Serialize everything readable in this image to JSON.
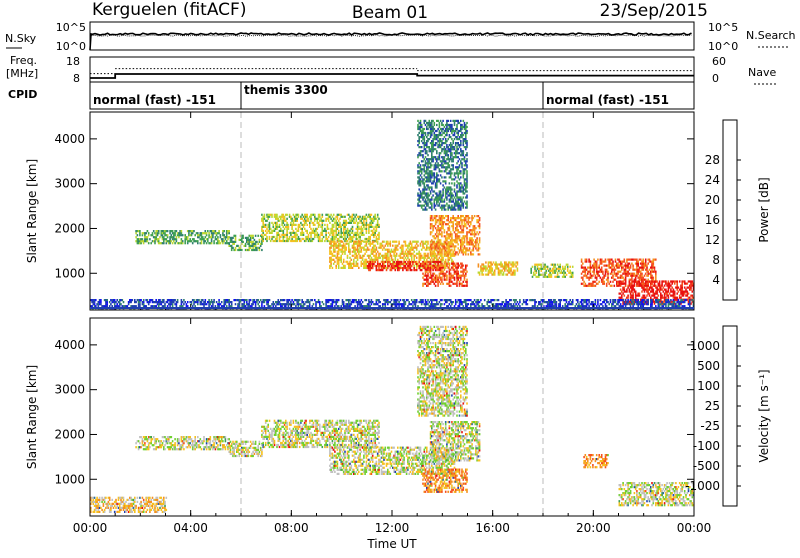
{
  "header": {
    "station": "Kerguelen (fitACF)",
    "beam": "Beam 01",
    "date": "23/Sep/2015"
  },
  "top_panel": {
    "left_label_top": "N.Sky",
    "left_label_bottom": "Freq.",
    "left_label_units": "[MHz]",
    "cpid_label": "CPID",
    "right_label_top": "N.Search",
    "right_label_bottom": "Nave",
    "nsky_ticks": [
      "10^5",
      "10^0"
    ],
    "freq_ticks": [
      "18",
      "8"
    ],
    "nsearch_ticks": [
      "10^5",
      "10^0"
    ],
    "nave_ticks": [
      "60",
      "0"
    ],
    "cpid_segments": [
      {
        "label": "normal (fast) -151",
        "start_hour": 0
      },
      {
        "label": "themis 3300",
        "start_hour": 6
      },
      {
        "label": "normal (fast) -151",
        "start_hour": 18
      }
    ],
    "freq_steps": [
      {
        "from_hour": 0,
        "to_hour": 1,
        "mhz": 9
      },
      {
        "from_hour": 1,
        "to_hour": 13,
        "mhz": 11
      },
      {
        "from_hour": 13,
        "to_hour": 24,
        "mhz": 10.2
      }
    ],
    "nave_level": 25
  },
  "chart_data": [
    {
      "type": "heatmap",
      "name": "Power",
      "ylabel": "Slant Range [km]",
      "xlabel": "",
      "x_ticks": [
        "00:00",
        "04:00",
        "08:00",
        "12:00",
        "16:00",
        "20:00",
        "00:00"
      ],
      "x_hours": [
        0,
        4,
        8,
        12,
        16,
        20,
        24
      ],
      "y_ticks": [
        1000,
        2000,
        3000,
        4000
      ],
      "ylim": [
        180,
        4600
      ],
      "colorbar": {
        "label": "Power [dB]",
        "ticks": [
          "4",
          "8",
          "12",
          "16",
          "20",
          "24",
          "28"
        ],
        "colors": [
          "#1010f0",
          "#1f3fb0",
          "#2f7f6f",
          "#3fa050",
          "#bcd830",
          "#f5c020",
          "#f59020",
          "#f55020",
          "#e81010"
        ]
      },
      "blobs": [
        {
          "t0": 1.8,
          "t1": 5.5,
          "r0": 1650,
          "r1": 1950,
          "level": 3
        },
        {
          "t0": 5.5,
          "t1": 6.8,
          "r0": 1500,
          "r1": 1850,
          "level": 3
        },
        {
          "t0": 6.8,
          "t1": 11.5,
          "r0": 1700,
          "r1": 2300,
          "level": 4
        },
        {
          "t0": 9.5,
          "t1": 14.5,
          "r0": 1100,
          "r1": 1700,
          "level": 5
        },
        {
          "t0": 11,
          "t1": 14,
          "r0": 1050,
          "r1": 1250,
          "level": 8
        },
        {
          "t0": 13.5,
          "t1": 15.5,
          "r0": 1400,
          "r1": 2300,
          "level": 6
        },
        {
          "t0": 13.2,
          "t1": 15,
          "r0": 700,
          "r1": 1200,
          "level": 7
        },
        {
          "t0": 15.4,
          "t1": 17.0,
          "r0": 950,
          "r1": 1250,
          "level": 5
        },
        {
          "t0": 17.5,
          "t1": 19.2,
          "r0": 900,
          "r1": 1200,
          "level": 4
        },
        {
          "t0": 19.5,
          "t1": 22.5,
          "r0": 700,
          "r1": 1300,
          "level": 7
        },
        {
          "t0": 21,
          "t1": 24,
          "r0": 300,
          "r1": 800,
          "level": 8
        },
        {
          "t0": 13,
          "t1": 15,
          "r0": 2400,
          "r1": 4400,
          "level": 2
        },
        {
          "t0": 0,
          "t1": 24,
          "r0": 200,
          "r1": 400,
          "level": 1
        }
      ]
    },
    {
      "type": "heatmap",
      "name": "Velocity",
      "ylabel": "Slant Range [km]",
      "xlabel": "Time UT",
      "x_ticks": [
        "00:00",
        "04:00",
        "08:00",
        "12:00",
        "16:00",
        "20:00",
        "00:00"
      ],
      "x_hours": [
        0,
        4,
        8,
        12,
        16,
        20,
        24
      ],
      "y_ticks": [
        1000,
        2000,
        3000,
        4000
      ],
      "ylim": [
        180,
        4600
      ],
      "colorbar": {
        "label": "Velocity [m s⁻¹]",
        "ticks": [
          "1000",
          "500",
          "100",
          "25",
          "-25",
          "-100",
          "-500",
          "-1000"
        ],
        "colors": [
          "#1f3fb0",
          "#2f6f9f",
          "#3f9f50",
          "#70d030",
          "#c0c0c0",
          "#f5c020",
          "#f59020",
          "#f55020",
          "#e81010"
        ]
      },
      "blobs": [
        {
          "t0": 1.8,
          "t1": 5.5,
          "r0": 1650,
          "r1": 1950,
          "level": 4
        },
        {
          "t0": 5.5,
          "t1": 6.8,
          "r0": 1500,
          "r1": 1850,
          "level": 4
        },
        {
          "t0": 6.8,
          "t1": 11.5,
          "r0": 1700,
          "r1": 2300,
          "level": 4
        },
        {
          "t0": 9.5,
          "t1": 14.5,
          "r0": 1100,
          "r1": 1700,
          "level": 4
        },
        {
          "t0": 13.5,
          "t1": 15.5,
          "r0": 1400,
          "r1": 2300,
          "level": 4
        },
        {
          "t0": 13.2,
          "t1": 15,
          "r0": 700,
          "r1": 1200,
          "level": 6
        },
        {
          "t0": 19.6,
          "t1": 20.6,
          "r0": 1250,
          "r1": 1550,
          "level": 6
        },
        {
          "t0": 21,
          "t1": 24,
          "r0": 400,
          "r1": 900,
          "level": 4
        },
        {
          "t0": 13,
          "t1": 15,
          "r0": 2400,
          "r1": 4400,
          "level": 4
        },
        {
          "t0": 0,
          "t1": 3,
          "r0": 250,
          "r1": 600,
          "level": 5
        }
      ]
    }
  ]
}
